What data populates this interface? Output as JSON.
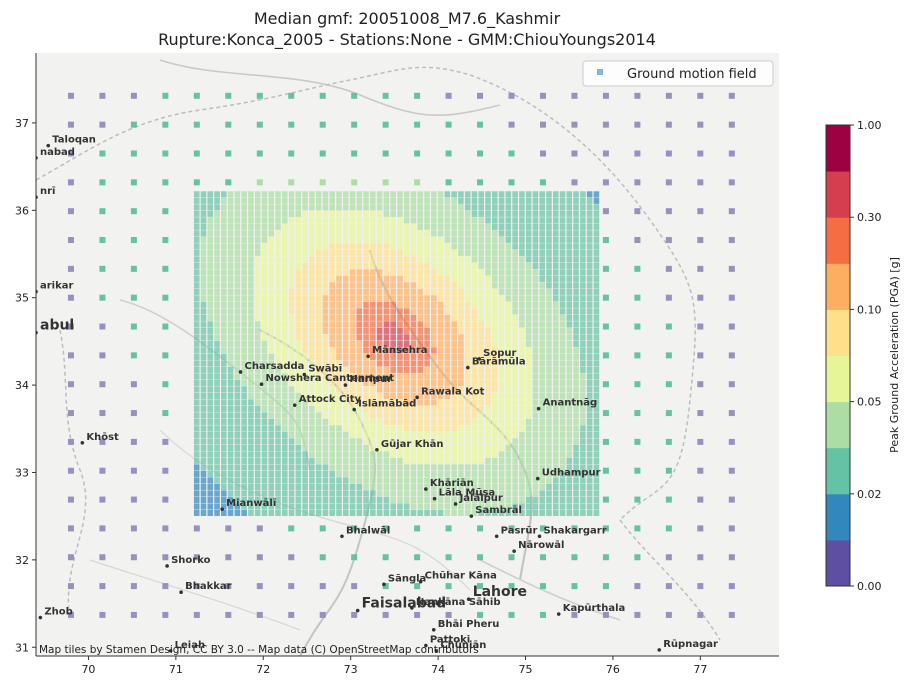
{
  "chart_data": {
    "type": "heatmap",
    "title_line1": "Median gmf: 20051008_M7.6_Kashmir",
    "title_line2": "Rupture:Konca_2005 -  Stations:None - GMM:ChiouYoungs2014",
    "xlim": [
      69.4,
      77.9
    ],
    "ylim": [
      30.9,
      37.8
    ],
    "x_ticks": [
      70,
      71,
      72,
      73,
      74,
      75,
      76,
      77
    ],
    "y_ticks": [
      31,
      32,
      33,
      34,
      35,
      36,
      37
    ],
    "legend": {
      "label": "Ground motion field",
      "placement": "top-right"
    },
    "colorbar": {
      "label": "Peak Ground Acceleration (PGA) [g]",
      "tick_labels": [
        "0.00",
        "0.02",
        "0.05",
        "0.10",
        "0.30",
        "1.00"
      ],
      "bins": [
        "#5e4fa2",
        "#3288bd",
        "#66c2a5",
        "#abdda4",
        "#e6f598",
        "#fee08b",
        "#fdae61",
        "#f46d43",
        "#d53e4f",
        "#9e0142"
      ]
    },
    "coarse_grid": {
      "lon_start": 69.8,
      "lon_end": 77.6,
      "lon_step": 0.36,
      "lat_start": 31.37,
      "lat_end": 37.32,
      "lat_step": 0.33
    },
    "fine_grid": {
      "lon_min": 71.2,
      "lon_max": 75.85,
      "lat_min": 32.5,
      "lat_max": 36.22
    },
    "epicenter": {
      "lon": 73.5,
      "lat": 34.55
    },
    "annotation": "Map tiles by Stamen Design, CC BY 3.0 -- Map data (C) OpenStreetMap contributors",
    "places": [
      {
        "name": "Taloqan",
        "lon": 69.54,
        "lat": 36.74
      },
      {
        "name": "nabad",
        "lon": 69.4,
        "lat": 36.6
      },
      {
        "name": "nrī",
        "lon": 69.4,
        "lat": 36.15
      },
      {
        "name": "arikar",
        "lon": 69.4,
        "lat": 35.07
      },
      {
        "name": "abul",
        "lon": 69.4,
        "lat": 34.6
      },
      {
        "name": "Charsadda",
        "lon": 71.74,
        "lat": 34.15
      },
      {
        "name": "Swābī",
        "lon": 72.47,
        "lat": 34.12
      },
      {
        "name": "Nowshera Cantonment",
        "lon": 71.98,
        "lat": 34.01
      },
      {
        "name": "Attock City",
        "lon": 72.36,
        "lat": 33.77
      },
      {
        "name": "Haripur",
        "lon": 72.94,
        "lat": 34.0
      },
      {
        "name": "Mānsehra",
        "lon": 73.2,
        "lat": 34.33
      },
      {
        "name": "Islāmābād",
        "lon": 73.04,
        "lat": 33.72
      },
      {
        "name": "Rawala Kot",
        "lon": 73.76,
        "lat": 33.86
      },
      {
        "name": "Sopur",
        "lon": 74.47,
        "lat": 34.3
      },
      {
        "name": "Bārāmūla",
        "lon": 74.34,
        "lat": 34.2
      },
      {
        "name": "Anantnāg",
        "lon": 75.15,
        "lat": 33.73
      },
      {
        "name": "Khōst",
        "lon": 69.93,
        "lat": 33.34
      },
      {
        "name": "Gūjar Khān",
        "lon": 73.3,
        "lat": 33.26
      },
      {
        "name": "Udhampur",
        "lon": 75.14,
        "lat": 32.93
      },
      {
        "name": "Khāriān",
        "lon": 73.86,
        "lat": 32.81
      },
      {
        "name": "Mianwālī",
        "lon": 71.53,
        "lat": 32.58
      },
      {
        "name": "Lāla Mūsa",
        "lon": 73.96,
        "lat": 32.7
      },
      {
        "name": "Jalālpur",
        "lon": 74.2,
        "lat": 32.64
      },
      {
        "name": "Sambrāl",
        "lon": 74.38,
        "lat": 32.5
      },
      {
        "name": "Bhalwāl",
        "lon": 72.9,
        "lat": 32.27
      },
      {
        "name": "Pasrūr",
        "lon": 74.67,
        "lat": 32.27
      },
      {
        "name": "Shakargarr",
        "lon": 75.16,
        "lat": 32.27
      },
      {
        "name": "Nārowāl",
        "lon": 74.87,
        "lat": 32.1
      },
      {
        "name": "Shorko",
        "lon": 70.9,
        "lat": 31.93
      },
      {
        "name": "Chūhar Kāna",
        "lon": 73.8,
        "lat": 31.75
      },
      {
        "name": "Sāngla",
        "lon": 73.38,
        "lat": 31.72
      },
      {
        "name": "Lahore",
        "lon": 74.35,
        "lat": 31.55
      },
      {
        "name": "Bhakkar",
        "lon": 71.06,
        "lat": 31.63
      },
      {
        "name": "Faisalabad",
        "lon": 73.08,
        "lat": 31.42
      },
      {
        "name": "Nankāna Sāhib",
        "lon": 73.7,
        "lat": 31.45
      },
      {
        "name": "Kapūrthala",
        "lon": 75.38,
        "lat": 31.38
      },
      {
        "name": "Zhob",
        "lon": 69.45,
        "lat": 31.34
      },
      {
        "name": "Bhāi Pheru",
        "lon": 73.95,
        "lat": 31.2
      },
      {
        "name": "Pattoki",
        "lon": 73.86,
        "lat": 31.02
      },
      {
        "name": "Chūniān",
        "lon": 73.98,
        "lat": 30.96
      },
      {
        "name": "Leiah",
        "lon": 70.94,
        "lat": 30.96
      },
      {
        "name": "Rūpnagar",
        "lon": 76.53,
        "lat": 30.97
      }
    ]
  }
}
